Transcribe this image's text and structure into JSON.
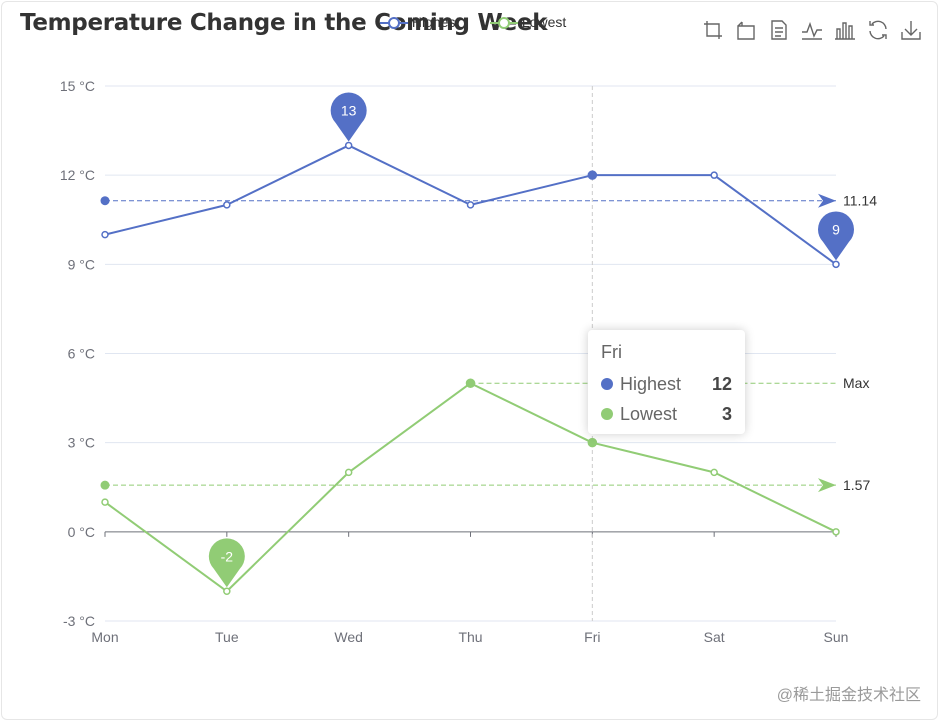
{
  "watermark": "@稀土掘金技术社区",
  "toolbox": [
    {
      "name": "zoom-icon"
    },
    {
      "name": "zoom-reset-icon"
    },
    {
      "name": "data-view-icon"
    },
    {
      "name": "line-chart-icon"
    },
    {
      "name": "bar-chart-icon"
    },
    {
      "name": "restore-icon"
    },
    {
      "name": "download-icon"
    }
  ],
  "tooltip": {
    "title": "Fri",
    "rows": [
      {
        "name": "Highest",
        "value": "12",
        "color": "#5470c6"
      },
      {
        "name": "Lowest",
        "value": "3",
        "color": "#91cc75"
      }
    ]
  },
  "chart_data": {
    "type": "line",
    "title": "Temperature Change in the Coming Week",
    "categories": [
      "Mon",
      "Tue",
      "Wed",
      "Thu",
      "Fri",
      "Sat",
      "Sun"
    ],
    "ylim": [
      -3,
      15
    ],
    "yticks": [
      -3,
      0,
      3,
      6,
      9,
      12,
      15
    ],
    "y_unit": " °C",
    "hover_category": "Fri",
    "series": [
      {
        "name": "Highest",
        "color": "#5470c6",
        "values": [
          10,
          11,
          13,
          11,
          12,
          12,
          9
        ],
        "mark_points": [
          {
            "category": "Wed",
            "value": 13,
            "label": "13"
          },
          {
            "category": "Sun",
            "value": 9,
            "label": "9"
          }
        ],
        "mark_lines": [
          {
            "kind": "average",
            "value": 11.14,
            "label": "11.14"
          }
        ]
      },
      {
        "name": "Lowest",
        "color": "#91cc75",
        "values": [
          1,
          -2,
          2,
          5,
          3,
          2,
          0
        ],
        "mark_points": [
          {
            "category": "Tue",
            "value": -2,
            "label": "-2"
          }
        ],
        "mark_lines": [
          {
            "kind": "average",
            "value": 1.57,
            "label": "1.57"
          },
          {
            "kind": "max",
            "value": 5,
            "label": "Max",
            "from": "Thu"
          }
        ]
      }
    ]
  }
}
